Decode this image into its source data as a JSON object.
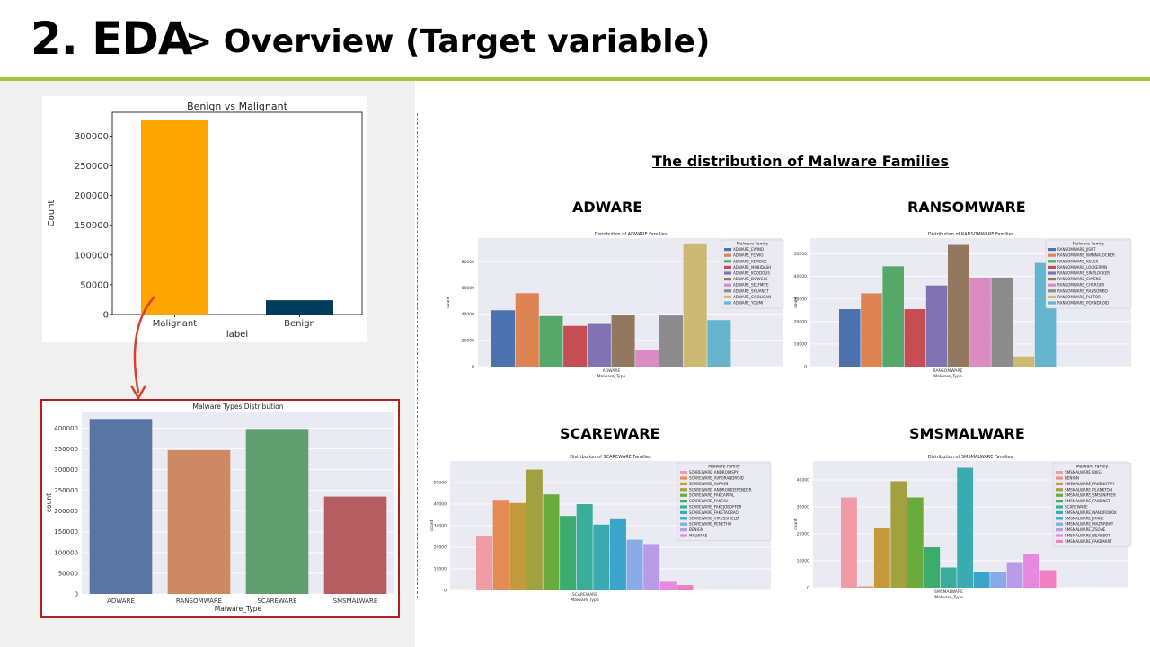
{
  "header": {
    "number": "2. EDA",
    "subtitle": "> Overview (Target variable)"
  },
  "right_heading": "The distribution  of Malware Families",
  "section_titles": {
    "adware": "ADWARE",
    "ransomware": "RANSOMWARE",
    "scareware": "SCAREWARE",
    "smsmalware": "SMSMALWARE"
  },
  "colors": {
    "accent_rule": "#a6c23f",
    "highlight_frame": "#b02020",
    "arrow": "#d94030"
  },
  "chart_data": [
    {
      "id": "benign-vs-malignant",
      "type": "bar",
      "title": "Benign vs Malignant",
      "xlabel": "label",
      "ylabel": "Count",
      "categories": [
        "Malignant",
        "Benign"
      ],
      "values": [
        328000,
        24000
      ],
      "colors": [
        "#ffa500",
        "#003b5c"
      ],
      "ylim": [
        0,
        340000
      ],
      "yticks": [
        0,
        50000,
        100000,
        150000,
        200000,
        250000,
        300000
      ],
      "grid": false
    },
    {
      "id": "malware-types",
      "type": "bar",
      "title": "Malware Types Distribution",
      "xlabel": "Malware_Type",
      "ylabel": "count",
      "categories": [
        "ADWARE",
        "RANSOMWARE",
        "SCAREWARE",
        "SMSMALWARE"
      ],
      "values": [
        422000,
        347000,
        398000,
        235000
      ],
      "colors": [
        "#5875a4",
        "#cc8963",
        "#5f9e6e",
        "#b55d60"
      ],
      "ylim": [
        0,
        440000
      ],
      "yticks": [
        0,
        50000,
        100000,
        150000,
        200000,
        250000,
        300000,
        350000,
        400000
      ],
      "grid": true
    },
    {
      "id": "adware-families",
      "type": "bar",
      "title": "Distribution of ADWARE Families",
      "xlabel": "Malware_Type",
      "ylabel": "count",
      "categories": [
        "ADWARE"
      ],
      "legend_title": "Malware Family",
      "series": [
        {
          "name": "ADWARE_EWIND",
          "value": 43000,
          "color": "#4c72b0"
        },
        {
          "name": "ADWARE_FEIWO",
          "value": 56000,
          "color": "#dd8452"
        },
        {
          "name": "ADWARE_KEMOGE",
          "value": 38500,
          "color": "#55a868"
        },
        {
          "name": "ADWARE_MOBIDASH",
          "value": 31000,
          "color": "#c44e52"
        },
        {
          "name": "ADWARE_KOODOUS",
          "value": 32500,
          "color": "#8172b3"
        },
        {
          "name": "ADWARE_DOWGIN",
          "value": 39500,
          "color": "#937860"
        },
        {
          "name": "ADWARE_SELFMITE",
          "value": 12500,
          "color": "#da8bc3"
        },
        {
          "name": "ADWARE_SHUANET",
          "value": 39000,
          "color": "#8c8c8c"
        },
        {
          "name": "ADWARE_GOOLIGAN",
          "value": 94000,
          "color": "#ccb974"
        },
        {
          "name": "ADWARE_YOUMI",
          "value": 35500,
          "color": "#64b5cd"
        }
      ],
      "ylim": [
        0,
        98000
      ],
      "yticks": [
        0,
        20000,
        40000,
        60000,
        80000
      ],
      "grid": true,
      "legend_position": "top-right"
    },
    {
      "id": "ransomware-families",
      "type": "bar",
      "title": "Distribution of RANSOMWARE Families",
      "xlabel": "Malware_Type",
      "ylabel": "count",
      "categories": [
        "RANSOMWARE"
      ],
      "legend_title": "Malware Family",
      "series": [
        {
          "name": "RANSOMWARE_JISUT",
          "value": 25500,
          "color": "#4c72b0"
        },
        {
          "name": "RANSOMWARE_WANNALOCKER",
          "value": 32500,
          "color": "#dd8452"
        },
        {
          "name": "RANSOMWARE_KOLER",
          "value": 44500,
          "color": "#55a868"
        },
        {
          "name": "RANSOMWARE_LOCKERPIN",
          "value": 25500,
          "color": "#c44e52"
        },
        {
          "name": "RANSOMWARE_SIMPLOCKER",
          "value": 36000,
          "color": "#8172b3"
        },
        {
          "name": "RANSOMWARE_SVPENG",
          "value": 54000,
          "color": "#937860"
        },
        {
          "name": "RANSOMWARE_CHARGER",
          "value": 39500,
          "color": "#da8bc3"
        },
        {
          "name": "RANSOMWARE_RANSOMBO",
          "value": 39500,
          "color": "#8c8c8c"
        },
        {
          "name": "RANSOMWARE_PLETOR",
          "value": 4500,
          "color": "#ccb974"
        },
        {
          "name": "RANSOMWARE_PORNDROID",
          "value": 46000,
          "color": "#64b5cd"
        }
      ],
      "ylim": [
        0,
        57000
      ],
      "yticks": [
        0,
        10000,
        20000,
        30000,
        40000,
        50000
      ],
      "grid": true,
      "legend_position": "top-right"
    },
    {
      "id": "scareware-families",
      "type": "bar",
      "title": "Distribution of SCAREWARE Families",
      "xlabel": "Malware_Type",
      "ylabel": "count",
      "categories": [
        "SCAREWARE"
      ],
      "legend_title": "Malware Family",
      "series": [
        {
          "name": "SCAREWARE_ANDROIDSPY",
          "value": 25000,
          "color": "#f19ba6"
        },
        {
          "name": "SCAREWARE_AVFORANDROID",
          "value": 42000,
          "color": "#e48b56"
        },
        {
          "name": "SCAREWARE_AVPASS",
          "value": 40500,
          "color": "#c49a3c"
        },
        {
          "name": "SCAREWARE_ANDROIDDEFENDER",
          "value": 56000,
          "color": "#a2a03f"
        },
        {
          "name": "SCAREWARE_FAKEAPPAL",
          "value": 44500,
          "color": "#6aab3e"
        },
        {
          "name": "SCAREWARE_FAKEAV",
          "value": 34500,
          "color": "#3cac6c"
        },
        {
          "name": "SCAREWARE_FAKEJOBOFFER",
          "value": 40000,
          "color": "#3aae9b"
        },
        {
          "name": "SCAREWARE_FAKETAOBAO",
          "value": 30500,
          "color": "#3aabb1"
        },
        {
          "name": "SCAREWARE_VIRUSSHIELD",
          "value": 33000,
          "color": "#3ba4cb"
        },
        {
          "name": "SCAREWARE_PENETHO",
          "value": 23500,
          "color": "#88aae8"
        },
        {
          "name": "BENIGN",
          "value": 21500,
          "color": "#b89ce8"
        },
        {
          "name": "MALWARE",
          "value": 4000,
          "color": "#e58ae0"
        },
        {
          "name": "",
          "value": 2500,
          "color": "#f27fc0"
        }
      ],
      "ylim": [
        0,
        60000
      ],
      "yticks": [
        0,
        10000,
        20000,
        30000,
        40000,
        50000
      ],
      "grid": true,
      "legend_position": "top-right"
    },
    {
      "id": "smsmalware-families",
      "type": "bar",
      "title": "Distribution of SMSMALWARE Families",
      "xlabel": "Malware_Type",
      "ylabel": "count",
      "categories": [
        "SMSMALWARE"
      ],
      "legend_title": "Malware Family",
      "series": [
        {
          "name": "SMSMALWARE_BIIGE",
          "value": 33500,
          "color": "#f19ba6"
        },
        {
          "name": "BENIGN",
          "value": 500,
          "color": "#eb9280"
        },
        {
          "name": "SMSMALWARE_FAKENOTIFY",
          "value": 22000,
          "color": "#c49a3c"
        },
        {
          "name": "SMSMALWARE_PLANKTON",
          "value": 39500,
          "color": "#a2a03f"
        },
        {
          "name": "SMSMALWARE_SMSSNIFFER",
          "value": 33500,
          "color": "#6aab3e"
        },
        {
          "name": "SMSMALWARE_FAKEINST",
          "value": 15000,
          "color": "#3cac6c"
        },
        {
          "name": "SCAREWARE",
          "value": 7500,
          "color": "#3aae9b"
        },
        {
          "name": "SMSMALWARE_NANDROBOX",
          "value": 44500,
          "color": "#3aabb1"
        },
        {
          "name": "SMSMALWARE_JIFAKE",
          "value": 6000,
          "color": "#3ba4cb"
        },
        {
          "name": "SMSMALWARE_MAZARBOT",
          "value": 6000,
          "color": "#88aae8"
        },
        {
          "name": "SMSMALWARE_ZSONE",
          "value": 9500,
          "color": "#b89ce8"
        },
        {
          "name": "SMSMALWARE_BEANBOT",
          "value": 12500,
          "color": "#e58ae0"
        },
        {
          "name": "SMSMALWARE_FAKEMART",
          "value": 6500,
          "color": "#f27fc0"
        }
      ],
      "ylim": [
        0,
        47000
      ],
      "yticks": [
        0,
        10000,
        20000,
        30000,
        40000
      ],
      "grid": true,
      "legend_position": "top-right"
    }
  ]
}
